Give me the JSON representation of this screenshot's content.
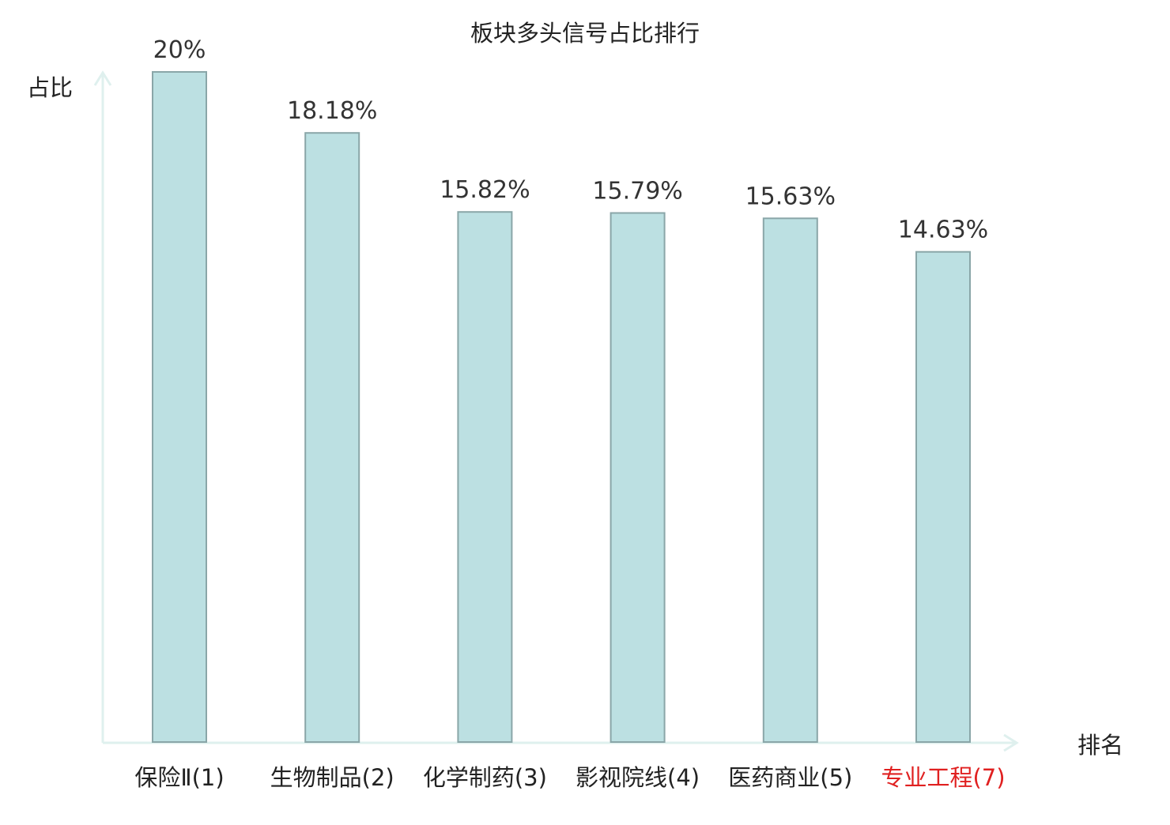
{
  "chart_data": {
    "type": "bar",
    "title": "板块多头信号占比排行",
    "ylabel": "占比",
    "xlabel": "排名",
    "categories": [
      "保险Ⅱ(1)",
      "生物制品(2)",
      "化学制药(3)",
      "影视院线(4)",
      "医药商业(5)",
      "专业工程(7)"
    ],
    "values": [
      20,
      18.18,
      15.82,
      15.79,
      15.63,
      14.63
    ],
    "value_labels": [
      "20%",
      "18.18%",
      "15.82%",
      "15.79%",
      "15.63%",
      "14.63%"
    ],
    "ylim": [
      0,
      20
    ],
    "grid": false,
    "highlight_index": 5,
    "colors": {
      "bar_fill": "#bce0e2",
      "bar_stroke": "#8aa6a8",
      "axis": "#dff0ee",
      "text": "#333333",
      "title": "#222222",
      "highlight_text": "#e02020"
    }
  }
}
